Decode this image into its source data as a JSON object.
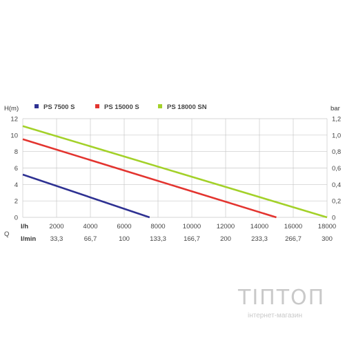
{
  "chart_data": {
    "type": "line",
    "ylabel_left": "H(m)",
    "ylabel_right": "bar",
    "row_label_q": "Q",
    "row_label_lh": "l/h",
    "row_label_lmin": "l/min",
    "yticks_left": [
      "0",
      "2",
      "4",
      "6",
      "8",
      "10",
      "12"
    ],
    "yticks_right": [
      "0",
      "0,2",
      "0,4",
      "0,6",
      "0,8",
      "1,0",
      "1,2"
    ],
    "xticks_lh": [
      "2000",
      "4000",
      "6000",
      "8000",
      "10000",
      "12000",
      "14000",
      "16000",
      "18000"
    ],
    "xticks_lmin": [
      "33,3",
      "66,7",
      "100",
      "133,3",
      "166,7",
      "200",
      "233,3",
      "266,7",
      "300"
    ],
    "xlim": [
      0,
      18000
    ],
    "ylim": [
      0,
      12
    ],
    "grid": true,
    "legend_position": "top",
    "series": [
      {
        "name": "PS 7500 S",
        "color": "#2e3192",
        "x": [
          0,
          7500
        ],
        "y": [
          5.2,
          0
        ]
      },
      {
        "name": "PS 15000 S",
        "color": "#e3342f",
        "x": [
          0,
          15000
        ],
        "y": [
          9.5,
          0
        ]
      },
      {
        "name": "PS 18000 SN",
        "color": "#a3d129",
        "x": [
          0,
          18000
        ],
        "y": [
          11.1,
          0
        ]
      }
    ]
  },
  "watermark": {
    "title": "ТІПТОП",
    "subtitle": "інтернет-магазин"
  }
}
